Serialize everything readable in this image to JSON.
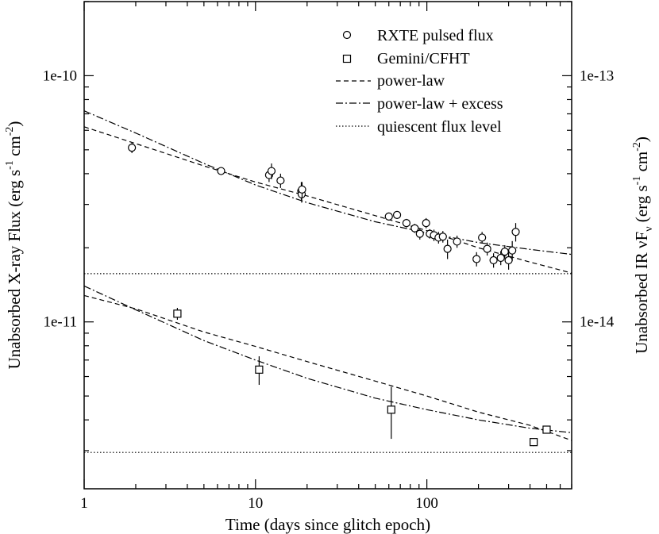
{
  "chart_data": {
    "type": "scatter",
    "xscale": "log",
    "yscale": "log",
    "xlim": [
      1,
      700
    ],
    "ylim": [
      2.1e-12,
      2e-10
    ],
    "right_ylim": [
      2.1e-15,
      2e-13
    ],
    "xlabel": "Time (days since glitch epoch)",
    "ylabel": "Unabsorbed X-ray Flux (erg s^-1 cm^-2)",
    "ylabel_parts": {
      "main": "Unabsorbed X-ray Flux (erg s",
      "sup1": "-1",
      "mid": " cm",
      "sup2": "-2",
      "end": ")"
    },
    "right_ylabel": "Unabsorbed IR νFν (erg s^-1 cm^-2)",
    "right_ylabel_parts": {
      "main": "Unabsorbed IR νF",
      "sub": "ν",
      "open": " (erg s",
      "sup1": "-1",
      "mid": " cm",
      "sup2": "-2",
      "end": ")"
    },
    "x_ticks": [
      {
        "value": 1,
        "label": "1"
      },
      {
        "value": 10,
        "label": "10"
      },
      {
        "value": 100,
        "label": "100"
      }
    ],
    "y_ticks": [
      {
        "value": 1e-11,
        "label": "1e-11"
      },
      {
        "value": 1e-10,
        "label": "1e-10"
      }
    ],
    "right_y_ticks": [
      {
        "value": 1e-14,
        "label": "1e-14"
      },
      {
        "value": 1e-13,
        "label": "1e-13"
      }
    ],
    "legend": {
      "position": "top-right",
      "entries": [
        {
          "label": "RXTE pulsed flux",
          "style": "circle"
        },
        {
          "label": "Gemini/CFHT",
          "style": "square"
        },
        {
          "label": "power-law",
          "style": "dashed"
        },
        {
          "label": "power-law + excess",
          "style": "dashdot"
        },
        {
          "label": "quiescent flux level",
          "style": "dotted"
        }
      ]
    },
    "series": [
      {
        "name": "RXTE pulsed flux",
        "marker": "circle",
        "points": [
          {
            "x": 1.9,
            "y": 5.1e-11,
            "err": 2.5e-12
          },
          {
            "x": 6.3,
            "y": 4.1e-11,
            "err": 1.5e-12
          },
          {
            "x": 12.0,
            "y": 3.95e-11,
            "err": 2.5e-12
          },
          {
            "x": 12.4,
            "y": 4.1e-11,
            "err": 3e-12
          },
          {
            "x": 14.0,
            "y": 3.75e-11,
            "err": 2.5e-12
          },
          {
            "x": 18.5,
            "y": 3.4e-11,
            "err": 3e-12
          },
          {
            "x": 18.6,
            "y": 3.3e-11,
            "err": 2.5e-12
          },
          {
            "x": 18.7,
            "y": 3.45e-11,
            "err": 2.5e-12
          },
          {
            "x": 60.0,
            "y": 2.68e-11,
            "err": 1e-12
          },
          {
            "x": 67.0,
            "y": 2.72e-11,
            "err": 1e-12
          },
          {
            "x": 76.0,
            "y": 2.52e-11,
            "err": 1e-12
          },
          {
            "x": 85.0,
            "y": 2.4e-11,
            "err": 1e-12
          },
          {
            "x": 91.0,
            "y": 2.28e-11,
            "err": 1.2e-12
          },
          {
            "x": 99.0,
            "y": 2.52e-11,
            "err": 1.2e-12
          },
          {
            "x": 104.0,
            "y": 2.28e-11,
            "err": 1e-12
          },
          {
            "x": 110.0,
            "y": 2.25e-11,
            "err": 1.2e-12
          },
          {
            "x": 117.0,
            "y": 2.2e-11,
            "err": 1.2e-12
          },
          {
            "x": 124.0,
            "y": 2.22e-11,
            "err": 1.2e-12
          },
          {
            "x": 132.0,
            "y": 1.98e-11,
            "err": 1.8e-12
          },
          {
            "x": 150.0,
            "y": 2.12e-11,
            "err": 1.2e-12
          },
          {
            "x": 195.0,
            "y": 1.8e-11,
            "err": 1.2e-12
          },
          {
            "x": 210.0,
            "y": 2.2e-11,
            "err": 1.2e-12
          },
          {
            "x": 225.0,
            "y": 1.98e-11,
            "err": 1.2e-12
          },
          {
            "x": 245.0,
            "y": 1.78e-11,
            "err": 1.2e-12
          },
          {
            "x": 270.0,
            "y": 1.82e-11,
            "err": 1.2e-12
          },
          {
            "x": 285.0,
            "y": 1.93e-11,
            "err": 1.2e-12
          },
          {
            "x": 300.0,
            "y": 1.78e-11,
            "err": 1.5e-12
          },
          {
            "x": 315.0,
            "y": 1.95e-11,
            "err": 1.8e-12
          },
          {
            "x": 330.0,
            "y": 2.32e-11,
            "err": 2e-12
          }
        ]
      },
      {
        "name": "Gemini/CFHT",
        "marker": "square",
        "points": [
          {
            "x": 3.5,
            "y": 1.08e-11,
            "err": 6e-13
          },
          {
            "x": 10.5,
            "y": 6.4e-12,
            "err": 8.5e-13
          },
          {
            "x": 62.0,
            "y": 4.4e-12,
            "err": 1.05e-12
          },
          {
            "x": 420.0,
            "y": 3.25e-12,
            "err": 1.2e-13
          },
          {
            "x": 500.0,
            "y": 3.65e-12,
            "err": 1.2e-13
          }
        ]
      },
      {
        "name": "power-law (X-ray)",
        "style": "dashed",
        "line": [
          [
            1,
            6.2e-11
          ],
          [
            2,
            5.3e-11
          ],
          [
            5,
            4.3e-11
          ],
          [
            10,
            3.7e-11
          ],
          [
            20,
            3.25e-11
          ],
          [
            50,
            2.7e-11
          ],
          [
            100,
            2.35e-11
          ],
          [
            200,
            2e-11
          ],
          [
            400,
            1.75e-11
          ],
          [
            700,
            1.58e-11
          ]
        ]
      },
      {
        "name": "power-law + excess (X-ray)",
        "style": "dashdot",
        "line": [
          [
            1,
            7.2e-11
          ],
          [
            2,
            5.85e-11
          ],
          [
            5,
            4.4e-11
          ],
          [
            10,
            3.6e-11
          ],
          [
            20,
            3.05e-11
          ],
          [
            50,
            2.55e-11
          ],
          [
            100,
            2.3e-11
          ],
          [
            200,
            2.1e-11
          ],
          [
            400,
            1.97e-11
          ],
          [
            700,
            1.88e-11
          ]
        ]
      },
      {
        "name": "power-law (IR)",
        "style": "dashed",
        "line": [
          [
            1,
            1.28e-11
          ],
          [
            2,
            1.13e-11
          ],
          [
            5,
            9.1e-12
          ],
          [
            10,
            7.95e-12
          ],
          [
            20,
            6.9e-12
          ],
          [
            50,
            5.75e-12
          ],
          [
            100,
            5e-12
          ],
          [
            200,
            4.3e-12
          ],
          [
            400,
            3.8e-12
          ],
          [
            700,
            3.3e-12
          ]
        ]
      },
      {
        "name": "power-law + excess (IR)",
        "style": "dashdot",
        "line": [
          [
            1,
            1.4e-11
          ],
          [
            2,
            1.12e-11
          ],
          [
            5,
            8.4e-12
          ],
          [
            10,
            7e-12
          ],
          [
            20,
            5.9e-12
          ],
          [
            50,
            4.9e-12
          ],
          [
            100,
            4.4e-12
          ],
          [
            200,
            4e-12
          ],
          [
            400,
            3.7e-12
          ],
          [
            700,
            3.55e-12
          ]
        ]
      },
      {
        "name": "quiescent flux level (X-ray)",
        "style": "dotted",
        "line": [
          [
            1,
            1.57e-11
          ],
          [
            700,
            1.57e-11
          ]
        ]
      },
      {
        "name": "quiescent flux level (IR)",
        "style": "dotted",
        "line": [
          [
            1,
            2.95e-12
          ],
          [
            700,
            2.95e-12
          ]
        ]
      }
    ]
  }
}
